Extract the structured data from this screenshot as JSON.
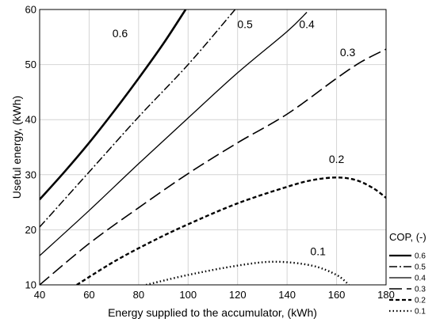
{
  "chart_data": {
    "type": "line",
    "title": "",
    "xlabel": "Energy supplied to the accumulator, (kWh)",
    "ylabel": "Useful energy, (kWh)",
    "xlim": [
      40,
      180
    ],
    "ylim": [
      10,
      60
    ],
    "xticks": [
      40,
      60,
      80,
      100,
      120,
      140,
      160,
      180
    ],
    "yticks": [
      10,
      20,
      30,
      40,
      50,
      60
    ],
    "grid": true,
    "legend": {
      "title": "COP, (-)",
      "position": "bottom-right"
    },
    "series": [
      {
        "name": "0.6",
        "label": "0.6",
        "style": "solid-thick",
        "points": [
          [
            40,
            25.5
          ],
          [
            50,
            30.5
          ],
          [
            60,
            35.8
          ],
          [
            70,
            41.5
          ],
          [
            80,
            47.5
          ],
          [
            90,
            53.8
          ],
          [
            99,
            60
          ]
        ]
      },
      {
        "name": "0.5",
        "label": "0.5",
        "style": "dash-dot",
        "points": [
          [
            40,
            20.5
          ],
          [
            60,
            30.5
          ],
          [
            80,
            40.5
          ],
          [
            100,
            50
          ],
          [
            119,
            60
          ]
        ]
      },
      {
        "name": "0.4",
        "label": "0.4",
        "style": "solid",
        "points": [
          [
            40,
            15.3
          ],
          [
            60,
            23.5
          ],
          [
            80,
            32
          ],
          [
            100,
            40.3
          ],
          [
            120,
            48.5
          ],
          [
            140,
            56
          ],
          [
            148,
            59.5
          ]
        ]
      },
      {
        "name": "0.3",
        "label": "0.3",
        "style": "long-dash",
        "points": [
          [
            40,
            10
          ],
          [
            60,
            17.5
          ],
          [
            80,
            24
          ],
          [
            100,
            30.2
          ],
          [
            120,
            35.8
          ],
          [
            140,
            41
          ],
          [
            160,
            47.5
          ],
          [
            170,
            50.5
          ],
          [
            180,
            52.8
          ]
        ]
      },
      {
        "name": "0.2",
        "label": "0.2",
        "style": "dash",
        "points": [
          [
            55,
            10
          ],
          [
            70,
            14.2
          ],
          [
            85,
            17.8
          ],
          [
            100,
            21
          ],
          [
            120,
            24.8
          ],
          [
            140,
            27.8
          ],
          [
            150,
            29
          ],
          [
            160,
            29.5
          ],
          [
            168,
            29
          ],
          [
            175,
            27.5
          ],
          [
            180,
            25.8
          ]
        ]
      },
      {
        "name": "0.1",
        "label": "0.1",
        "style": "dot",
        "points": [
          [
            83,
            10
          ],
          [
            100,
            11.8
          ],
          [
            120,
            13.5
          ],
          [
            135,
            14.2
          ],
          [
            150,
            13.5
          ],
          [
            160,
            11.8
          ],
          [
            165,
            10
          ]
        ]
      }
    ]
  }
}
